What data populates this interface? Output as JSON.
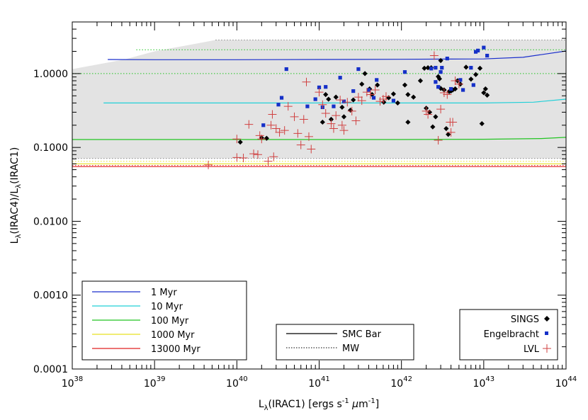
{
  "chart_data": {
    "type": "scatter",
    "title": "",
    "xlabel_parts": [
      "L",
      "λ",
      "(IRAC1) [ergs s",
      "-1",
      " ",
      "μ",
      "m",
      "-1",
      "]"
    ],
    "ylabel_parts": [
      "L",
      "λ",
      "(IRAC4)/L",
      "λ",
      "(IRAC1)"
    ],
    "x_scale": "log",
    "y_scale": "log",
    "xlim": [
      1e+38,
      1e+44
    ],
    "ylim": [
      0.0001,
      5.0
    ],
    "x_ticks": [
      {
        "base": "10",
        "exp": "38"
      },
      {
        "base": "10",
        "exp": "39"
      },
      {
        "base": "10",
        "exp": "40"
      },
      {
        "base": "10",
        "exp": "41"
      },
      {
        "base": "10",
        "exp": "42"
      },
      {
        "base": "10",
        "exp": "43"
      },
      {
        "base": "10",
        "exp": "44"
      }
    ],
    "y_ticks": [
      "0.0001",
      "0.0010",
      "0.0100",
      "0.1000",
      "1.0000"
    ],
    "grey_band": {
      "x": [
        1e+38,
        4.3e+38,
        1e+39,
        5.5e+39,
        1e+44
      ],
      "upper": [
        1.15,
        1.55,
        2.0,
        2.85,
        2.85
      ],
      "lower": [
        0.071,
        0.071,
        0.071,
        0.071,
        0.071
      ]
    },
    "age_legend": {
      "position": "bottom-left",
      "items": [
        {
          "label": "1 Myr",
          "color": "#1a2ecc"
        },
        {
          "label": "10 Myr",
          "color": "#22d0d8"
        },
        {
          "label": "100 Myr",
          "color": "#22c422"
        },
        {
          "label": "1000 Myr",
          "color": "#e8e022"
        },
        {
          "label": "13000 Myr",
          "color": "#e02020"
        }
      ]
    },
    "dust_legend": {
      "position": "bottom-center",
      "items": [
        {
          "label": "SMC Bar",
          "style": "solid"
        },
        {
          "label": "MW",
          "style": "dotted"
        }
      ]
    },
    "sample_legend": {
      "position": "bottom-right",
      "items": [
        {
          "label": "SINGS",
          "marker": "diamond",
          "color": "#000000"
        },
        {
          "label": "Engelbracht",
          "marker": "square",
          "color": "#1530c8"
        },
        {
          "label": "LVL",
          "marker": "plus",
          "color": "#d04040"
        }
      ]
    },
    "series": [
      {
        "style": "solid",
        "color": "#1a2ecc",
        "x": [
          2.7e+38,
          1e+39,
          1e+40,
          1e+41,
          1e+42,
          1e+43,
          3e+43,
          1e+44
        ],
        "y": [
          1.55,
          1.54,
          1.54,
          1.55,
          1.56,
          1.58,
          1.66,
          2.02
        ]
      },
      {
        "style": "solid",
        "color": "#22d0d8",
        "x": [
          2.4e+38,
          1e+39,
          1e+40,
          1e+41,
          1e+42,
          1e+43,
          4e+43,
          1e+44
        ],
        "y": [
          0.4,
          0.4,
          0.4,
          0.4,
          0.4,
          0.4,
          0.41,
          0.45
        ]
      },
      {
        "style": "solid",
        "color": "#22c422",
        "x": [
          1e+38,
          1e+39,
          1e+40,
          1e+41,
          1e+42,
          1e+43,
          5e+43,
          1e+44
        ],
        "y": [
          0.128,
          0.128,
          0.128,
          0.128,
          0.128,
          0.129,
          0.132,
          0.137
        ]
      },
      {
        "style": "solid",
        "color": "#e8e022",
        "x": [
          1e+38,
          1e+44
        ],
        "y": [
          0.06,
          0.06
        ]
      },
      {
        "style": "solid",
        "color": "#e02020",
        "x": [
          1e+38,
          1e+44
        ],
        "y": [
          0.055,
          0.055
        ]
      },
      {
        "style": "dotted",
        "color": "#22c422",
        "x": [
          1e+38,
          1e+44
        ],
        "y": [
          1.0,
          1.0
        ]
      },
      {
        "style": "dotted",
        "color": "#22c422",
        "x": [
          6e+38,
          1e+44
        ],
        "y": [
          2.1,
          2.1
        ]
      },
      {
        "style": "dotted",
        "color": "#888888",
        "x": [
          5.5e+39,
          1e+44
        ],
        "y": [
          2.85,
          2.85
        ]
      },
      {
        "style": "dotted",
        "color": "#888888",
        "x": [
          1e+38,
          1e+44
        ],
        "y": [
          0.071,
          0.071
        ]
      },
      {
        "style": "dotted",
        "color": "#e8e022",
        "x": [
          1e+38,
          1e+44
        ],
        "y": [
          0.065,
          0.065
        ]
      },
      {
        "style": "dotted",
        "color": "#e02020",
        "x": [
          1e+38,
          1e+44
        ],
        "y": [
          0.057,
          0.057
        ]
      },
      {
        "name": "SINGS",
        "marker": "diamond",
        "color": "#000000",
        "points": [
          [
            1.1e+40,
            0.118
          ],
          [
            2e+40,
            0.135
          ],
          [
            2.3e+40,
            0.133
          ],
          [
            1.1e+41,
            0.22
          ],
          [
            1.3e+41,
            0.45
          ],
          [
            1.4e+41,
            0.24
          ],
          [
            1.2e+41,
            0.52
          ],
          [
            1.6e+41,
            0.48
          ],
          [
            1.9e+41,
            0.35
          ],
          [
            2e+41,
            0.26
          ],
          [
            2.4e+41,
            0.32
          ],
          [
            2.6e+41,
            0.44
          ],
          [
            3.3e+41,
            0.72
          ],
          [
            3.6e+41,
            1.0
          ],
          [
            4.1e+41,
            0.62
          ],
          [
            4.4e+41,
            0.52
          ],
          [
            5.1e+41,
            0.7
          ],
          [
            6.1e+41,
            0.41
          ],
          [
            7e+41,
            0.47
          ],
          [
            8e+41,
            0.53
          ],
          [
            9e+41,
            0.4
          ],
          [
            1.1e+42,
            0.7
          ],
          [
            1.2e+42,
            0.52
          ],
          [
            1.2e+42,
            0.22
          ],
          [
            1.4e+42,
            0.48
          ],
          [
            1.7e+42,
            0.8
          ],
          [
            1.9e+42,
            1.18
          ],
          [
            2.1e+42,
            1.2
          ],
          [
            2.3e+42,
            1.2
          ],
          [
            2e+42,
            0.34
          ],
          [
            2.2e+42,
            0.3
          ],
          [
            2.4e+42,
            0.19
          ],
          [
            2.6e+42,
            0.26
          ],
          [
            2.8e+42,
            0.91
          ],
          [
            3e+42,
            1.5
          ],
          [
            3e+42,
            0.63
          ],
          [
            3.3e+42,
            0.6
          ],
          [
            3.5e+42,
            0.18
          ],
          [
            3.7e+42,
            0.15
          ],
          [
            3.8e+42,
            0.57
          ],
          [
            4e+42,
            0.58
          ],
          [
            4.2e+42,
            0.6
          ],
          [
            4.5e+42,
            0.62
          ],
          [
            4.8e+42,
            0.8
          ],
          [
            5.2e+42,
            0.72
          ],
          [
            6.1e+42,
            1.22
          ],
          [
            7e+42,
            0.84
          ],
          [
            8e+42,
            0.97
          ],
          [
            9e+42,
            1.18
          ],
          [
            9.5e+42,
            0.21
          ],
          [
            1e+43,
            0.55
          ],
          [
            1.05e+43,
            0.62
          ],
          [
            1.1e+43,
            0.51
          ],
          [
            2.9e+42,
            0.85
          ]
        ]
      },
      {
        "name": "Engelbracht",
        "marker": "square",
        "color": "#1530c8",
        "points": [
          [
            2.1e+40,
            0.2
          ],
          [
            3.2e+40,
            0.38
          ],
          [
            3.5e+40,
            0.47
          ],
          [
            4e+40,
            1.15
          ],
          [
            7.2e+40,
            0.36
          ],
          [
            9e+40,
            0.45
          ],
          [
            1e+41,
            0.65
          ],
          [
            1.1e+41,
            0.35
          ],
          [
            1.2e+41,
            0.66
          ],
          [
            1.5e+41,
            0.36
          ],
          [
            1.8e+41,
            0.88
          ],
          [
            2e+41,
            0.42
          ],
          [
            2.6e+41,
            0.58
          ],
          [
            3e+41,
            1.15
          ],
          [
            4e+41,
            0.6
          ],
          [
            4.6e+41,
            0.47
          ],
          [
            5e+41,
            0.82
          ],
          [
            8e+41,
            0.43
          ],
          [
            1.1e+42,
            1.05
          ],
          [
            2.3e+42,
            1.17
          ],
          [
            2.6e+42,
            0.77
          ],
          [
            2.8e+42,
            0.66
          ],
          [
            3e+42,
            1.05
          ],
          [
            3.1e+42,
            1.2
          ],
          [
            3.6e+42,
            1.6
          ],
          [
            4e+42,
            0.62
          ],
          [
            5.2e+42,
            0.82
          ],
          [
            5.6e+42,
            0.6
          ],
          [
            7e+42,
            1.2
          ],
          [
            7.5e+42,
            0.7
          ],
          [
            8e+42,
            1.97
          ],
          [
            8.5e+42,
            2.05
          ],
          [
            1e+43,
            2.25
          ],
          [
            1.1e+43,
            1.75
          ],
          [
            2.6e+42,
            1.2
          ]
        ]
      },
      {
        "name": "LVL",
        "marker": "plus",
        "color": "#d04040",
        "points": [
          [
            4.5e+39,
            0.058
          ],
          [
            1e+40,
            0.073
          ],
          [
            1e+40,
            0.13
          ],
          [
            1.2e+40,
            0.072
          ],
          [
            1.4e+40,
            0.205
          ],
          [
            1.6e+40,
            0.082
          ],
          [
            1.8e+40,
            0.08
          ],
          [
            1.9e+40,
            0.145
          ],
          [
            2e+40,
            0.13
          ],
          [
            2.4e+40,
            0.065
          ],
          [
            2.6e+40,
            0.2
          ],
          [
            2.7e+40,
            0.28
          ],
          [
            2.8e+40,
            0.075
          ],
          [
            3e+40,
            0.18
          ],
          [
            3.3e+40,
            0.16
          ],
          [
            3.8e+40,
            0.17
          ],
          [
            4.2e+40,
            0.36
          ],
          [
            5e+40,
            0.26
          ],
          [
            5.5e+40,
            0.155
          ],
          [
            6e+40,
            0.108
          ],
          [
            6.5e+40,
            0.24
          ],
          [
            7e+40,
            0.77
          ],
          [
            7.5e+40,
            0.14
          ],
          [
            8e+40,
            0.095
          ],
          [
            1e+41,
            0.56
          ],
          [
            1.1e+41,
            0.38
          ],
          [
            1.2e+41,
            0.29
          ],
          [
            1.4e+41,
            0.21
          ],
          [
            1.5e+41,
            0.18
          ],
          [
            1.6e+41,
            0.27
          ],
          [
            1.8e+41,
            0.44
          ],
          [
            1.9e+41,
            0.2
          ],
          [
            2e+41,
            0.17
          ],
          [
            2.2e+41,
            0.41
          ],
          [
            2.5e+41,
            0.31
          ],
          [
            2.8e+41,
            0.23
          ],
          [
            3e+41,
            0.48
          ],
          [
            3.3e+41,
            0.43
          ],
          [
            3.8e+41,
            0.56
          ],
          [
            4.2e+41,
            0.52
          ],
          [
            4.8e+41,
            0.6
          ],
          [
            5.5e+41,
            0.42
          ],
          [
            6e+41,
            0.45
          ],
          [
            6.5e+41,
            0.49
          ],
          [
            2e+42,
            0.31
          ],
          [
            2.1e+42,
            0.28
          ],
          [
            2.5e+42,
            1.75
          ],
          [
            2.8e+42,
            0.125
          ],
          [
            3e+42,
            0.33
          ],
          [
            3.3e+42,
            0.55
          ],
          [
            3.6e+42,
            0.52
          ],
          [
            3.9e+42,
            0.22
          ],
          [
            4e+42,
            0.16
          ],
          [
            4.2e+42,
            0.22
          ],
          [
            4.5e+42,
            0.8
          ],
          [
            5e+42,
            0.72
          ]
        ]
      }
    ]
  }
}
